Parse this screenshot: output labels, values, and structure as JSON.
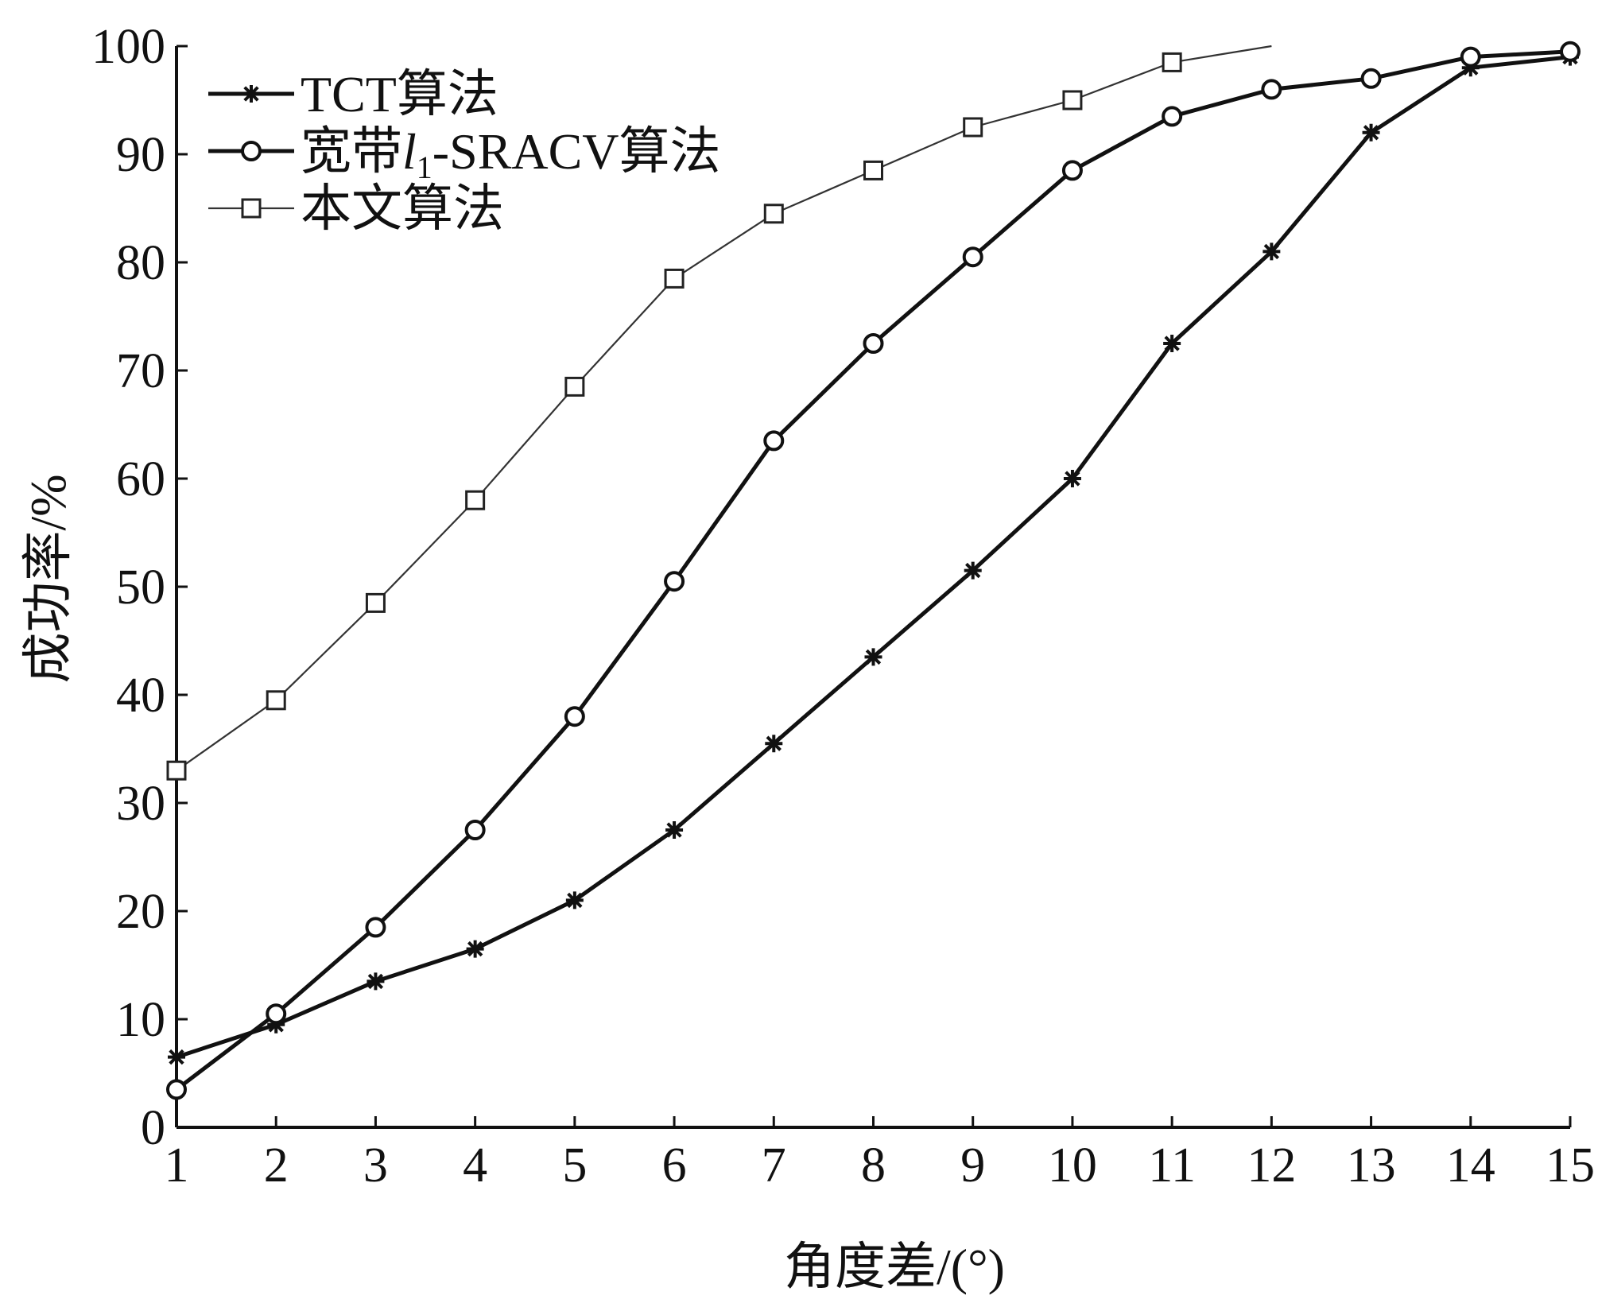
{
  "chart_data": {
    "type": "line",
    "title": "",
    "xlabel": "角度差/(°)",
    "ylabel": "成功率/%",
    "xlim": [
      1,
      15
    ],
    "ylim": [
      0,
      100
    ],
    "xticks": [
      1,
      2,
      3,
      4,
      5,
      6,
      7,
      8,
      9,
      10,
      11,
      12,
      13,
      14,
      15
    ],
    "yticks": [
      0,
      10,
      20,
      30,
      40,
      50,
      60,
      70,
      80,
      90,
      100
    ],
    "grid": false,
    "legend_position": "top-left",
    "series": [
      {
        "name": "TCT算法",
        "marker": "star",
        "line_weight": "thick",
        "x": [
          1,
          2,
          3,
          4,
          5,
          6,
          7,
          8,
          9,
          10,
          11,
          12,
          13,
          14,
          15
        ],
        "y": [
          6.5,
          9.5,
          13.5,
          16.5,
          21,
          27.5,
          35.5,
          43.5,
          51.5,
          60,
          72.5,
          81,
          92,
          98,
          99
        ]
      },
      {
        "name_prefix": "宽带",
        "name_var": "l",
        "name_sub": "1",
        "name_suffix": "-SRACV算法",
        "marker": "circle",
        "line_weight": "thick",
        "x": [
          1,
          2,
          3,
          4,
          5,
          6,
          7,
          8,
          9,
          10,
          11,
          12,
          13,
          14,
          15
        ],
        "y": [
          3.5,
          10.5,
          18.5,
          27.5,
          38,
          50.5,
          63.5,
          72.5,
          80.5,
          88.5,
          93.5,
          96,
          97,
          99,
          99.5
        ]
      },
      {
        "name": "本文算法",
        "marker": "square",
        "line_weight": "thin",
        "x": [
          1,
          2,
          3,
          4,
          5,
          6,
          7,
          8,
          9,
          10,
          11,
          12
        ],
        "y": [
          33,
          39.5,
          48.5,
          58,
          68.5,
          78.5,
          84.5,
          88.5,
          92.5,
          95,
          98.5,
          100
        ],
        "marker_count": 11
      }
    ]
  }
}
